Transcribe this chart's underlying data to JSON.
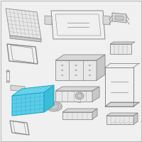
{
  "background_color": "#f0f0f0",
  "border_color": "#bbbbbb",
  "highlight_color": "#1aabcc",
  "highlight_fill": "#5dcce8",
  "highlight_fill2": "#3bbcd8",
  "highlight_top": "#80ddf0",
  "part_color": "#888888",
  "part_fill": "#e8e8e8",
  "part_fill2": "#d8d8d8",
  "part_fill3": "#c8c8c8",
  "grid_color": "#aaaaaa",
  "figsize": [
    2.0,
    2.0
  ],
  "dpi": 100
}
